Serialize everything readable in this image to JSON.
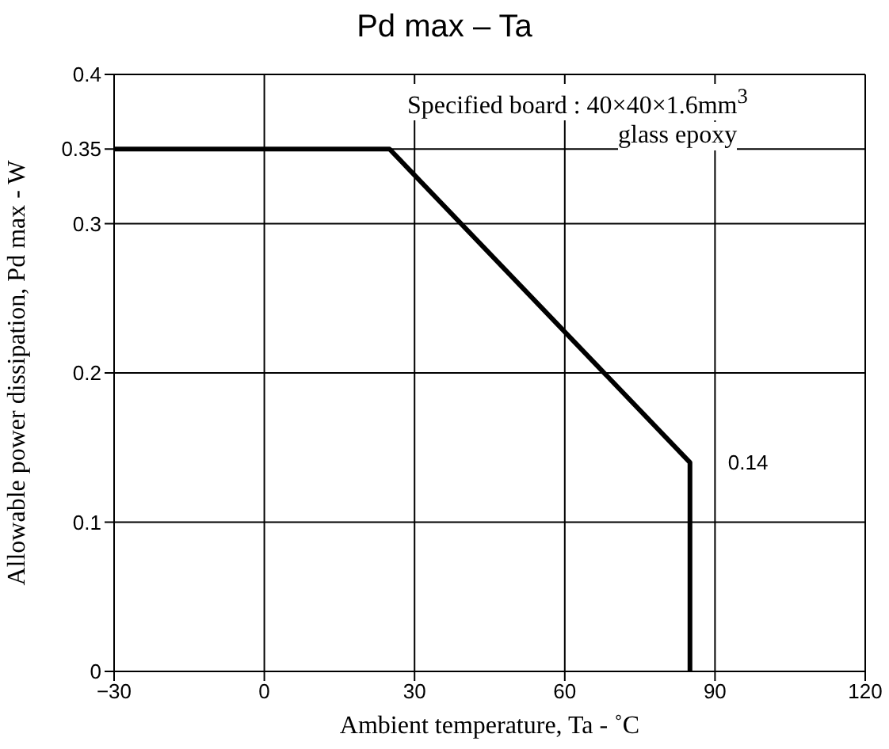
{
  "chart_data": {
    "type": "line",
    "title": "Pd max  –  Ta",
    "xlabel": "Ambient temperature,  Ta -   ˚C",
    "ylabel": "Allowable power dissipation,  Pd max -   W",
    "x": [
      -30,
      25,
      85,
      85
    ],
    "series": [
      {
        "color": "#000000",
        "values": [
          0.35,
          0.35,
          0.14,
          0
        ]
      }
    ],
    "xlim": [
      -30,
      120
    ],
    "xticks": [
      {
        "value": -30,
        "label": "−30"
      },
      0,
      30,
      60,
      90,
      120
    ],
    "ylim": [
      0,
      0.4
    ],
    "yticks": [
      0,
      0.1,
      0.2,
      0.3,
      0.35,
      0.4
    ],
    "grid": true,
    "marker": "none",
    "line_style": "solid",
    "annotations": [
      "Specified board : 40×40×1.6mm$^{3}$",
      "glass epoxy",
      {
        "text": "0.14",
        "x": 85,
        "y": 0.14
      }
    ]
  }
}
